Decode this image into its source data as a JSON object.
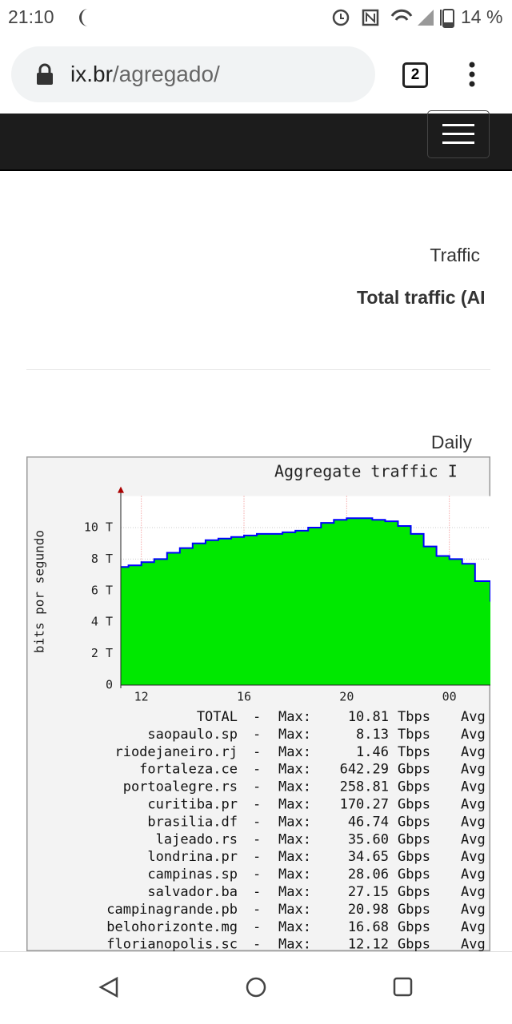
{
  "status_bar": {
    "time": "21:10",
    "battery": "14 %"
  },
  "browser": {
    "host": "ix.br",
    "path": "/agregado/",
    "tabs": "2"
  },
  "content": {
    "heading": "Traffic",
    "subheading": "Total traffic (AI",
    "period": "Daily"
  },
  "graph": {
    "type": "area",
    "title": "Aggregate traffic I",
    "ylabel": "bits por segundo",
    "color": "#00e800",
    "line_color": "#0000ff",
    "xlim": [
      11.2,
      25.6
    ],
    "ylim": [
      0,
      12
    ],
    "xticks": [
      12,
      16,
      20,
      {
        "value": 24,
        "label": "00"
      }
    ],
    "yticks": [
      0,
      {
        "value": 2,
        "label": "2 T"
      },
      {
        "value": 4,
        "label": "4 T"
      },
      {
        "value": 6,
        "label": "6 T"
      },
      {
        "value": 8,
        "label": "8 T"
      },
      {
        "value": 10,
        "label": "10 T"
      }
    ],
    "x": [
      11.2,
      11.5,
      12,
      12.5,
      13,
      13.5,
      14,
      14.5,
      15,
      15.5,
      16,
      16.5,
      17,
      17.5,
      18,
      18.5,
      19,
      19.5,
      20,
      20.5,
      21,
      21.5,
      22,
      22.5,
      23,
      23.5,
      24,
      24.5,
      25,
      25.6
    ],
    "values": [
      7.5,
      7.6,
      7.8,
      8.0,
      8.4,
      8.7,
      9.0,
      9.2,
      9.3,
      9.4,
      9.5,
      9.6,
      9.6,
      9.7,
      9.8,
      10.0,
      10.3,
      10.5,
      10.6,
      10.6,
      10.5,
      10.4,
      10.1,
      9.6,
      8.8,
      8.2,
      8.0,
      7.7,
      6.6,
      5.3
    ],
    "legend": [
      {
        "name": "TOTAL",
        "sep": "-",
        "label": "Max:",
        "value": "10.81",
        "unit": "Tbps",
        "avg": "Avg"
      },
      {
        "name": "saopaulo.sp",
        "sep": "-",
        "label": "Max:",
        "value": "8.13",
        "unit": "Tbps",
        "avg": "Avg"
      },
      {
        "name": "riodejaneiro.rj",
        "sep": "-",
        "label": "Max:",
        "value": "1.46",
        "unit": "Tbps",
        "avg": "Avg"
      },
      {
        "name": "fortaleza.ce",
        "sep": "-",
        "label": "Max:",
        "value": "642.29",
        "unit": "Gbps",
        "avg": "Avg"
      },
      {
        "name": "portoalegre.rs",
        "sep": "-",
        "label": "Max:",
        "value": "258.81",
        "unit": "Gbps",
        "avg": "Avg"
      },
      {
        "name": "curitiba.pr",
        "sep": "-",
        "label": "Max:",
        "value": "170.27",
        "unit": "Gbps",
        "avg": "Avg"
      },
      {
        "name": "brasilia.df",
        "sep": "-",
        "label": "Max:",
        "value": "46.74",
        "unit": "Gbps",
        "avg": "Avg"
      },
      {
        "name": "lajeado.rs",
        "sep": "-",
        "label": "Max:",
        "value": "35.60",
        "unit": "Gbps",
        "avg": "Avg"
      },
      {
        "name": "londrina.pr",
        "sep": "-",
        "label": "Max:",
        "value": "34.65",
        "unit": "Gbps",
        "avg": "Avg"
      },
      {
        "name": "campinas.sp",
        "sep": "-",
        "label": "Max:",
        "value": "28.06",
        "unit": "Gbps",
        "avg": "Avg"
      },
      {
        "name": "salvador.ba",
        "sep": "-",
        "label": "Max:",
        "value": "27.15",
        "unit": "Gbps",
        "avg": "Avg"
      },
      {
        "name": "campinagrande.pb",
        "sep": "-",
        "label": "Max:",
        "value": "20.98",
        "unit": "Gbps",
        "avg": "Avg"
      },
      {
        "name": "belohorizonte.mg",
        "sep": "-",
        "label": "Max:",
        "value": "16.68",
        "unit": "Gbps",
        "avg": "Avg"
      },
      {
        "name": "florianopolis.sc",
        "sep": "-",
        "label": "Max:",
        "value": "12.12",
        "unit": "Gbps",
        "avg": "Avg"
      }
    ]
  }
}
